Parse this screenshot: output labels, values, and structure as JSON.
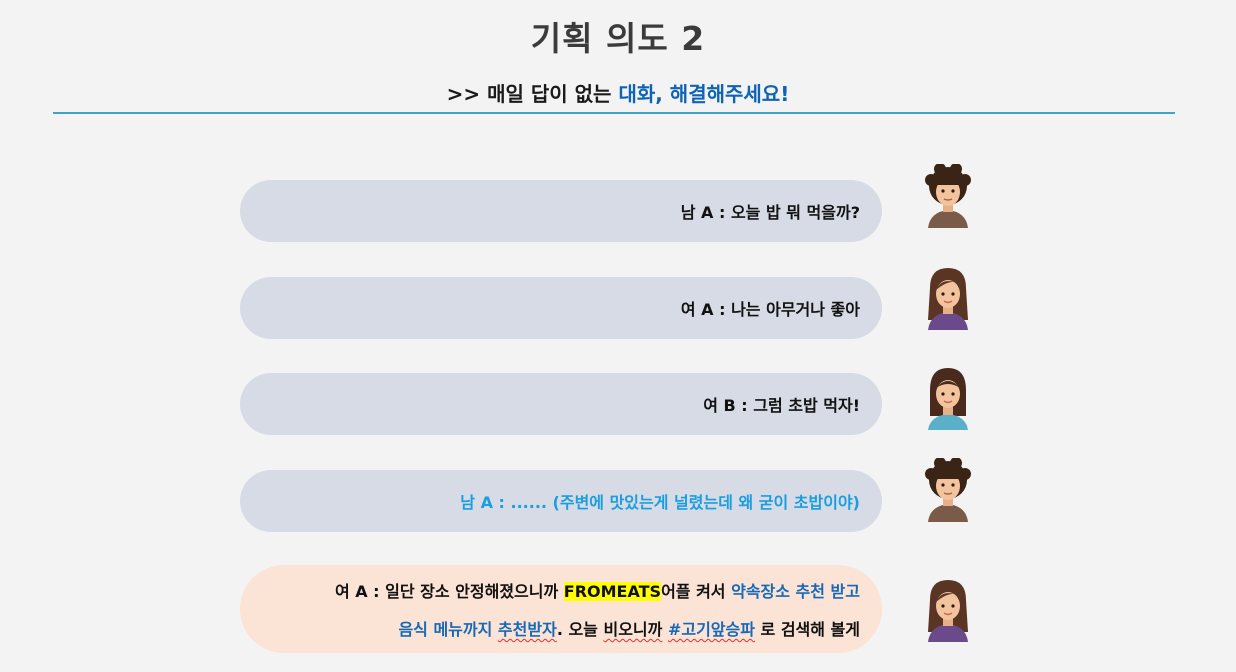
{
  "header": {
    "title": "기획 의도 2",
    "subtitle_prefix": ">> 매일 답이 없는 ",
    "subtitle_accent": "대화, 해결해주세요!"
  },
  "colors": {
    "accent_blue": "#0f63b5",
    "rule": "#3fa2c6",
    "bubble_gray": "#d6dbe5",
    "bubble_peach": "#fbe3d5",
    "highlight": "#ffff00",
    "cyan_text": "#1a9ee0"
  },
  "dialogue": [
    {
      "speaker": "남 A",
      "avatar": "man-avatar-icon",
      "text": "남 A : 오늘 밥 뭐 먹을까?"
    },
    {
      "speaker": "여 A",
      "avatar": "woman-avatar-icon",
      "text": "여 A : 나는 아무거나 좋아"
    },
    {
      "speaker": "여 B",
      "avatar": "woman-avatar-icon",
      "text": "여 B : 그럼 초밥 먹자!"
    },
    {
      "speaker": "남 A",
      "avatar": "man-avatar-icon",
      "text": "남 A : ...... (주변에 맛있는게 널렸는데 왜 굳이 초밥이야)"
    }
  ],
  "final": {
    "speaker": "여 A",
    "avatar": "woman-avatar-icon",
    "l1_a": "여  A : 일단 장소 안정해졌으니까 ",
    "l1_hl": "FROMEATS",
    "l1_b": "어플 켜서 ",
    "l1_c": "약속장소 추천 받고",
    "l2_a": "음식 메뉴까지 ",
    "l2_b": "추천받자",
    "l2_c": ". 오늘 ",
    "l2_d": "비오니까",
    "l2_e": " ",
    "l2_f": "#고기앞승파",
    "l2_g": " 로 검색해 볼게"
  }
}
